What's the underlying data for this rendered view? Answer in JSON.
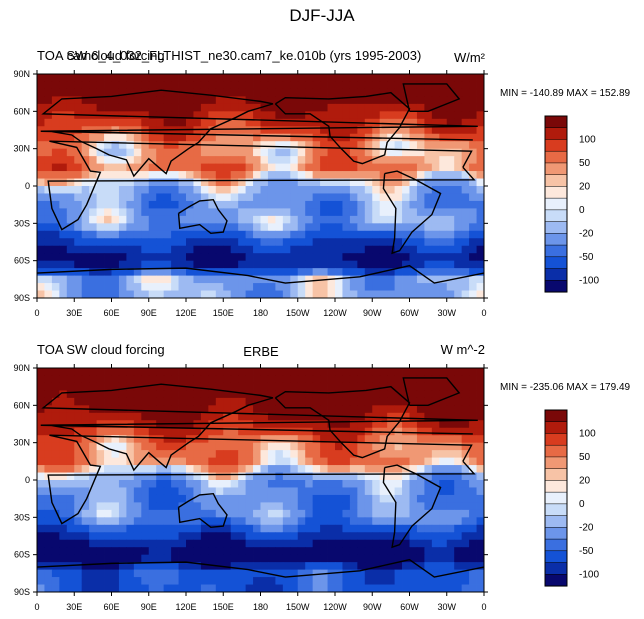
{
  "title": "DJF-JJA",
  "colormap": [
    "#08086e",
    "#0a2ea8",
    "#1452d6",
    "#3a6fe0",
    "#6c95ea",
    "#9dbaf2",
    "#c8dcf8",
    "#e8f0fc",
    "#fde8dc",
    "#f7c3a6",
    "#f09874",
    "#e76a45",
    "#d83c1f",
    "#b01b0c",
    "#7a0808"
  ],
  "colorbar_labels": [
    "100",
    "50",
    "20",
    "0",
    "-20",
    "-50",
    "-100"
  ],
  "panels": [
    {
      "left_title": "TOA SW cloud forcing",
      "center_title": "cam6_4_032_FLTHIST_ne30.cam7_ke.010b (yrs 1995-2003)",
      "right_title": "W/m²",
      "minmax": "MIN = -140.89 MAX = 152.89"
    },
    {
      "left_title": "TOA SW cloud forcing",
      "center_title": "ERBE",
      "right_title": "W m^-2",
      "minmax": "MIN = -235.06 MAX = 179.49"
    }
  ],
  "axes": {
    "x_ticks": [
      "0",
      "30E",
      "60E",
      "90E",
      "120E",
      "150E",
      "180",
      "150W",
      "120W",
      "90W",
      "60W",
      "30W",
      "0"
    ],
    "y_ticks": [
      "90N",
      "60N",
      "30N",
      "0",
      "30S",
      "60S",
      "90S"
    ]
  },
  "chart_data": [
    {
      "type": "heatmap",
      "title": "cam6_4_032_FLTHIST_ne30.cam7_ke.010b (yrs 1995-2003)",
      "variable": "TOA SW cloud forcing",
      "units": "W/m²",
      "season_difference": "DJF-JJA",
      "x_range": [
        0,
        360
      ],
      "y_range": [
        -90,
        90
      ],
      "min": -140.89,
      "max": 152.89,
      "contour_levels": [
        -100,
        -50,
        -20,
        0,
        20,
        50,
        100
      ],
      "zonal_bands": [
        {
          "lat": 75,
          "value": 110
        },
        {
          "lat": 60,
          "value": 70
        },
        {
          "lat": 45,
          "value": 40
        },
        {
          "lat": 30,
          "value": 10
        },
        {
          "lat": 15,
          "value": 25
        },
        {
          "lat": 0,
          "value": -15
        },
        {
          "lat": -15,
          "value": -30
        },
        {
          "lat": -30,
          "value": -20
        },
        {
          "lat": -45,
          "value": -70
        },
        {
          "lat": -60,
          "value": -110
        },
        {
          "lat": -75,
          "value": -20
        }
      ]
    },
    {
      "type": "heatmap",
      "title": "ERBE",
      "variable": "TOA SW cloud forcing",
      "units": "W m^-2",
      "season_difference": "DJF-JJA",
      "x_range": [
        0,
        360
      ],
      "y_range": [
        -90,
        90
      ],
      "min": -235.06,
      "max": 179.49,
      "contour_levels": [
        -100,
        -50,
        -20,
        0,
        20,
        50,
        100
      ],
      "zonal_bands": [
        {
          "lat": 75,
          "value": 110
        },
        {
          "lat": 60,
          "value": 90
        },
        {
          "lat": 45,
          "value": 60
        },
        {
          "lat": 30,
          "value": 25
        },
        {
          "lat": 15,
          "value": 20
        },
        {
          "lat": 0,
          "value": -25
        },
        {
          "lat": -15,
          "value": -35
        },
        {
          "lat": -30,
          "value": -30
        },
        {
          "lat": -45,
          "value": -80
        },
        {
          "lat": -60,
          "value": -130
        },
        {
          "lat": -75,
          "value": -60
        }
      ]
    }
  ]
}
